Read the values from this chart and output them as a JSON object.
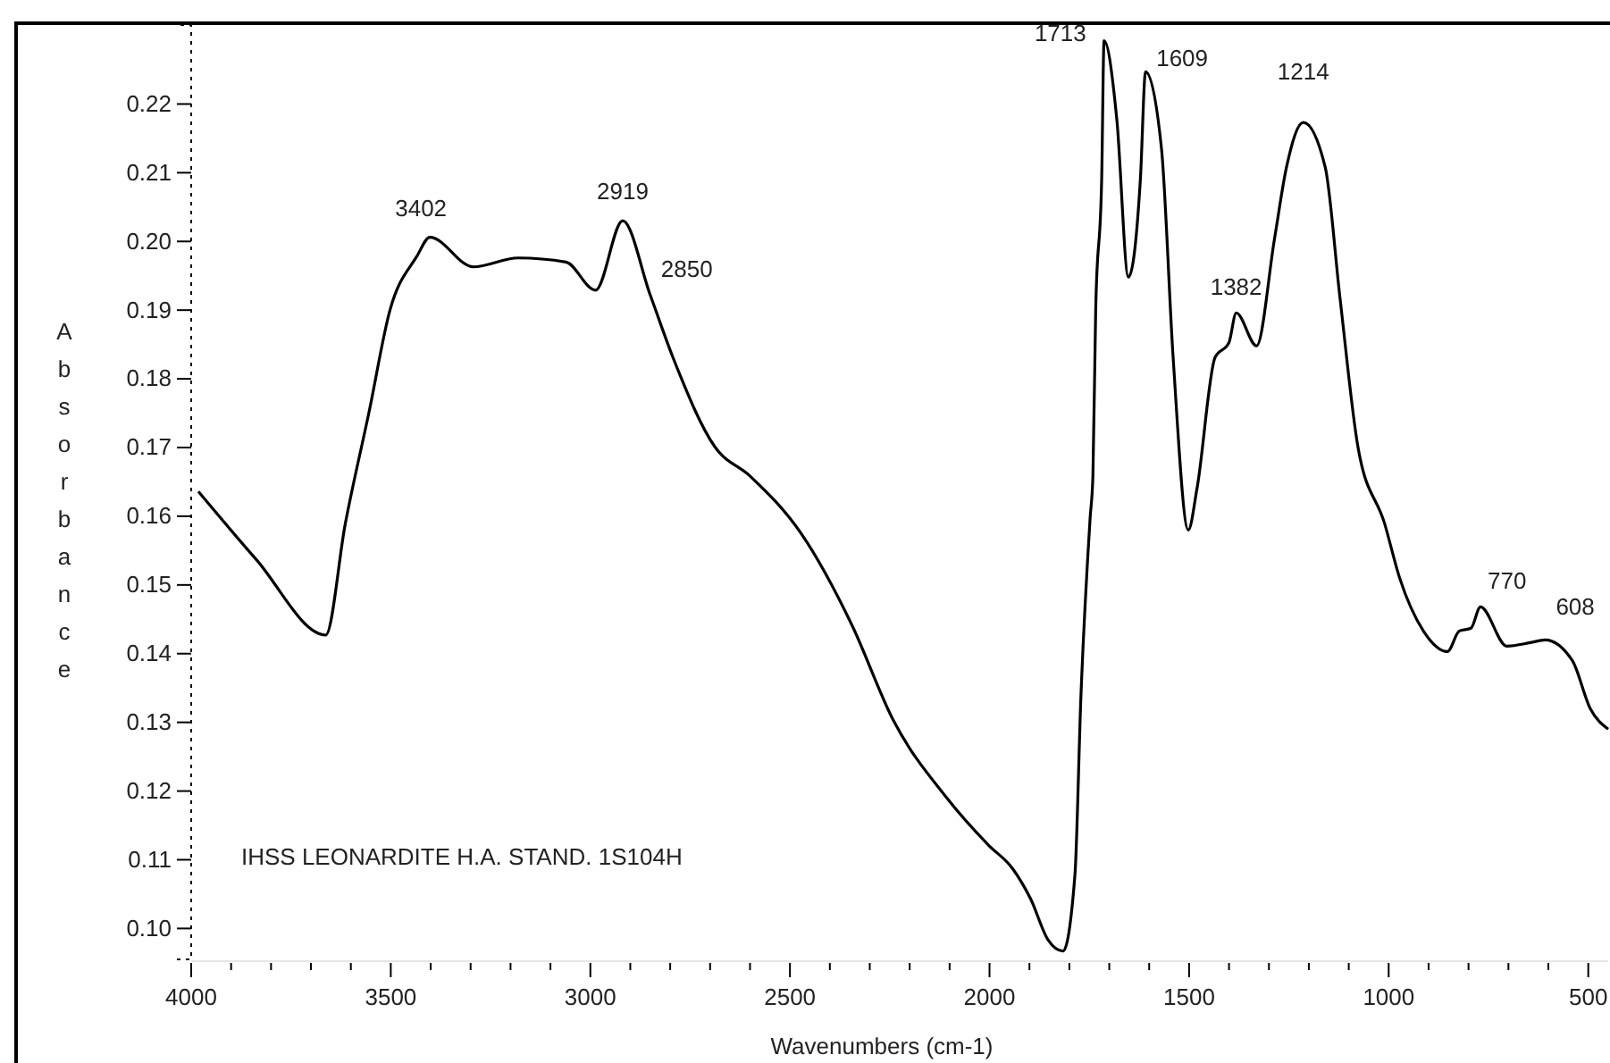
{
  "chart_data": {
    "type": "line",
    "xlabel": "Wavenumbers (cm-1)",
    "ylabel": "Absorbance",
    "xlim": [
      4000,
      450
    ],
    "ylim": [
      0.0955,
      0.2315
    ],
    "xticks": [
      4000,
      {
        "value": 3900,
        "label": null
      },
      {
        "value": 3800,
        "label": null
      },
      {
        "value": 3700,
        "label": null
      },
      {
        "value": 3600,
        "label": null
      },
      3500,
      {
        "value": 3400,
        "label": null
      },
      {
        "value": 3300,
        "label": null
      },
      {
        "value": 3200,
        "label": null
      },
      {
        "value": 3100,
        "label": null
      },
      3000,
      {
        "value": 2900,
        "label": null
      },
      {
        "value": 2800,
        "label": null
      },
      {
        "value": 2700,
        "label": null
      },
      {
        "value": 2600,
        "label": null
      },
      2500,
      {
        "value": 2400,
        "label": null
      },
      {
        "value": 2300,
        "label": null
      },
      {
        "value": 2200,
        "label": null
      },
      {
        "value": 2100,
        "label": null
      },
      2000,
      {
        "value": 1900,
        "label": null
      },
      {
        "value": 1800,
        "label": null
      },
      {
        "value": 1700,
        "label": null
      },
      {
        "value": 1600,
        "label": null
      },
      1500,
      {
        "value": 1400,
        "label": null
      },
      {
        "value": 1300,
        "label": null
      },
      {
        "value": 1200,
        "label": null
      },
      {
        "value": 1100,
        "label": null
      },
      1000,
      {
        "value": 900,
        "label": null
      },
      {
        "value": 800,
        "label": null
      },
      {
        "value": 700,
        "label": null
      },
      {
        "value": 600,
        "label": null
      },
      500
    ],
    "yticks": [
      {
        "value": 0.1,
        "label": "0.10"
      },
      0.11,
      0.12,
      0.13,
      0.14,
      0.15,
      0.16,
      0.17,
      0.18,
      0.19,
      {
        "value": 0.2,
        "label": "0.20"
      },
      0.21,
      0.22
    ],
    "grid": false,
    "marker": "none",
    "line_style": "solid",
    "series": [
      {
        "color": "#000000",
        "x": [
          3982,
          3837,
          3663,
          3614,
          3554,
          3502,
          3435,
          3402,
          3293,
          3181,
          3061,
          2987,
          2919,
          2850,
          2793,
          2688,
          2599,
          2472,
          2345,
          2241,
          2107,
          2002,
          1942,
          1897,
          1853,
          1816,
          1786,
          1771,
          1748,
          1741,
          1734,
          1719,
          1713,
          1681,
          1652,
          1622,
          1609,
          1569,
          1540,
          1502,
          1480,
          1435,
          1400,
          1382,
          1331,
          1286,
          1256,
          1214,
          1159,
          1122,
          1077,
          1010,
          973,
          913,
          853,
          823,
          794,
          770,
          704,
          645,
          608,
          540,
          495,
          450
        ],
        "values": [
          0.1636,
          0.1537,
          0.1427,
          0.1589,
          0.1753,
          0.19,
          0.1978,
          0.2006,
          0.1963,
          0.1976,
          0.197,
          0.1929,
          0.203,
          0.1922,
          0.1831,
          0.1701,
          0.1658,
          0.1575,
          0.1442,
          0.1303,
          0.119,
          0.1121,
          0.1087,
          0.1043,
          0.0983,
          0.0967,
          0.1078,
          0.1338,
          0.1597,
          0.1658,
          0.19,
          0.2091,
          0.2292,
          0.2177,
          0.1948,
          0.2091,
          0.2247,
          0.2134,
          0.1831,
          0.158,
          0.1641,
          0.1831,
          0.1853,
          0.1896,
          0.1848,
          0.2004,
          0.2108,
          0.2173,
          0.2108,
          0.1918,
          0.1701,
          0.1589,
          0.1511,
          0.1433,
          0.1403,
          0.1433,
          0.1437,
          0.1468,
          0.1411,
          0.1416,
          0.142,
          0.139,
          0.132,
          0.129
        ]
      }
    ],
    "annotations": [
      {
        "text": "3402",
        "x": 3402,
        "y": 0.2006
      },
      {
        "text": "2919",
        "x": 2919,
        "y": 0.203
      },
      {
        "text": "2850",
        "x": 2850,
        "y": 0.1922
      },
      {
        "text": "1713",
        "x": 1713,
        "y": 0.2292
      },
      {
        "text": "1609",
        "x": 1609,
        "y": 0.2247
      },
      {
        "text": "1382",
        "x": 1382,
        "y": 0.1896
      },
      {
        "text": "1214",
        "x": 1214,
        "y": 0.2173
      },
      {
        "text": "770",
        "x": 770,
        "y": 0.1468
      },
      {
        "text": "608",
        "x": 608,
        "y": 0.142
      },
      "IHSS LEONARDITE H.A. STAND. 1S104H"
    ]
  }
}
